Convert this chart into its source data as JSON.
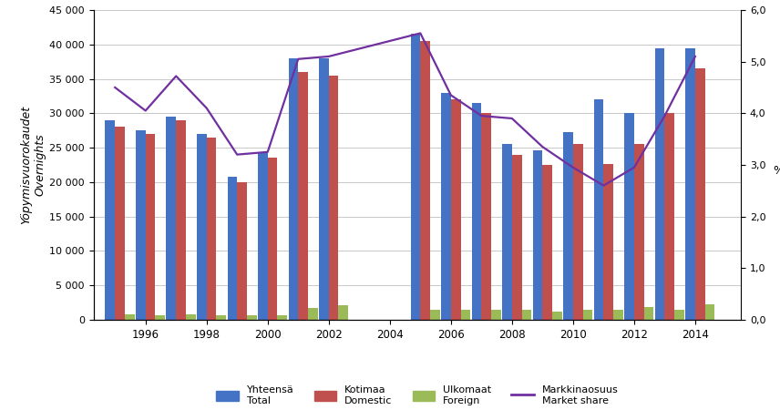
{
  "years": [
    1995,
    1996,
    1997,
    1998,
    1999,
    2000,
    2001,
    2002,
    2005,
    2006,
    2007,
    2008,
    2009,
    2010,
    2011,
    2012,
    2013,
    2014
  ],
  "total": [
    29000,
    27500,
    29500,
    27000,
    20800,
    24200,
    38000,
    38000,
    41500,
    33000,
    31500,
    25500,
    24600,
    27200,
    32000,
    30000,
    39400,
    39500
  ],
  "domestic": [
    28100,
    27000,
    29000,
    26500,
    20000,
    23500,
    36000,
    35500,
    40500,
    32000,
    30000,
    24000,
    22500,
    25500,
    22600,
    25500,
    30100,
    36500
  ],
  "foreign": [
    800,
    600,
    800,
    700,
    700,
    700,
    1700,
    2100,
    1500,
    1400,
    1500,
    1400,
    1200,
    1500,
    1500,
    1800,
    1500,
    2200
  ],
  "market_share_years": [
    1995,
    1996,
    1997,
    1998,
    1999,
    2000,
    2001,
    2002,
    2005,
    2006,
    2007,
    2008,
    2009,
    2010,
    2011,
    2012,
    2013,
    2014
  ],
  "market_share": [
    4.5,
    4.05,
    4.72,
    4.1,
    3.2,
    3.25,
    5.05,
    5.1,
    5.55,
    4.35,
    3.95,
    3.9,
    3.35,
    2.95,
    2.6,
    2.95,
    3.95,
    5.1
  ],
  "bar_color_total": "#4472C4",
  "bar_color_domestic": "#C0504D",
  "bar_color_foreign": "#9BBB59",
  "line_color": "#7030A0",
  "ylabel_left": "Yöpymisvuorokaudet\nOvernights",
  "ylabel_right": "%",
  "ylim_left": [
    0,
    45000
  ],
  "ylim_right": [
    0.0,
    6.0
  ],
  "yticks_left": [
    0,
    5000,
    10000,
    15000,
    20000,
    25000,
    30000,
    35000,
    40000,
    45000
  ],
  "yticks_right": [
    0.0,
    1.0,
    2.0,
    3.0,
    4.0,
    5.0,
    6.0
  ],
  "xtick_labels": [
    "1996",
    "1998",
    "2000",
    "2002",
    "2004",
    "2006",
    "2008",
    "2010",
    "2012",
    "2014"
  ],
  "xtick_positions": [
    1996,
    1998,
    2000,
    2002,
    2004,
    2006,
    2008,
    2010,
    2012,
    2014
  ],
  "legend_labels": [
    "Yhteensä\nTotal",
    "Kotimaa\nDomestic",
    "Ulkomaat\nForeign",
    "Markkinaosuus\nMarket share"
  ],
  "background_color": "#FFFFFF",
  "grid_color": "#C0C0C0"
}
